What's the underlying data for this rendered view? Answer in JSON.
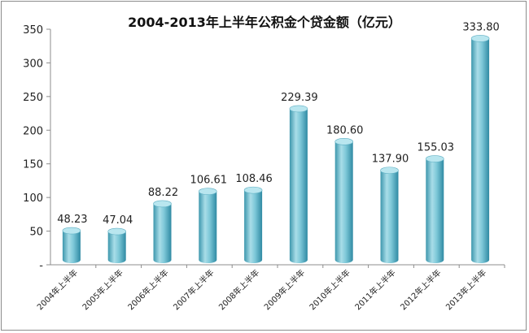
{
  "chart_data": {
    "type": "bar",
    "title": "2004-2013年上半年公积金个贷金额（亿元）",
    "xlabel": "",
    "ylabel": "",
    "categories": [
      "2004年上半年",
      "2005年上半年",
      "2006年上半年",
      "2007年上半年",
      "2008年上半年",
      "2009年上半年",
      "2010年上半年",
      "2011年上半年",
      "2012年上半年",
      "2013年上半年"
    ],
    "values": [
      48.23,
      47.04,
      88.22,
      106.61,
      108.46,
      229.39,
      180.6,
      137.9,
      155.03,
      333.8
    ],
    "value_labels": [
      "48.23",
      "47.04",
      "88.22",
      "106.61",
      "108.46",
      "229.39",
      "180.60",
      "137.90",
      "155.03",
      "333.80"
    ],
    "ylim": [
      0,
      350
    ],
    "yticks": [
      0,
      50,
      100,
      150,
      200,
      250,
      300,
      350
    ],
    "ytick_labels": [
      "-",
      "50",
      "100",
      "150",
      "200",
      "250",
      "300",
      "350"
    ],
    "grid": false,
    "legend": "none",
    "bar_style": "3d-cylinder",
    "colors": {
      "bar": "#7ec8d8",
      "bar_dark": "#2f8aa3",
      "bar_top": "#b9e6ef",
      "axis": "#8c8c8c"
    }
  }
}
